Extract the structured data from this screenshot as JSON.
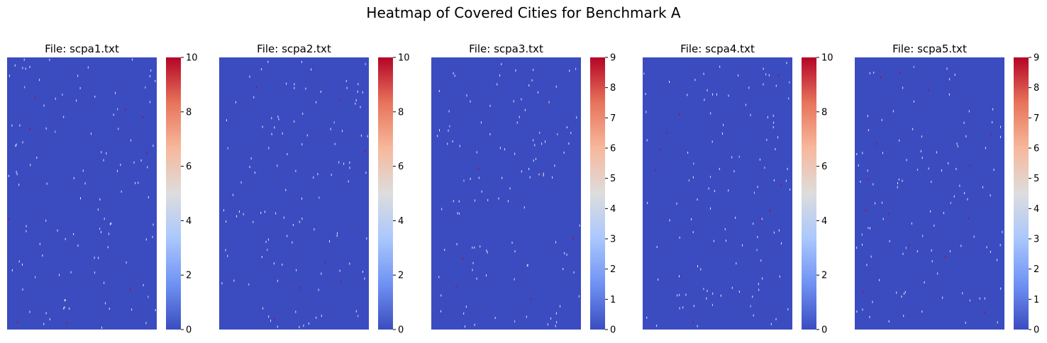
{
  "figure": {
    "title": "Heatmap of Covered Cities for Benchmark A"
  },
  "colors": {
    "background": "#3b4cc0",
    "colormap": "coolwarm",
    "colormap_stops": [
      "#3b4cc0",
      "#6f92f3",
      "#aac7fd",
      "#dddddd",
      "#f7b89c",
      "#e7745b",
      "#b40426"
    ]
  },
  "chart_data": [
    {
      "type": "heatmap",
      "title": "File: scpa1.txt",
      "xlabel": "",
      "ylabel": "",
      "colorbar": {
        "vmin": 0,
        "vmax": 10,
        "ticks": [
          "0",
          "2",
          "4",
          "6",
          "8",
          "10"
        ]
      },
      "background_value": 0,
      "nonzero_density": "sparse",
      "axes_visible": false
    },
    {
      "type": "heatmap",
      "title": "File: scpa2.txt",
      "xlabel": "",
      "ylabel": "",
      "colorbar": {
        "vmin": 0,
        "vmax": 10,
        "ticks": [
          "0",
          "2",
          "4",
          "6",
          "8",
          "10"
        ]
      },
      "background_value": 0,
      "nonzero_density": "sparse",
      "axes_visible": false
    },
    {
      "type": "heatmap",
      "title": "File: scpa3.txt",
      "xlabel": "",
      "ylabel": "",
      "colorbar": {
        "vmin": 0,
        "vmax": 9,
        "ticks": [
          "0",
          "1",
          "2",
          "3",
          "4",
          "5",
          "6",
          "7",
          "8",
          "9"
        ]
      },
      "background_value": 0,
      "nonzero_density": "sparse",
      "axes_visible": false
    },
    {
      "type": "heatmap",
      "title": "File: scpa4.txt",
      "xlabel": "",
      "ylabel": "",
      "colorbar": {
        "vmin": 0,
        "vmax": 10,
        "ticks": [
          "0",
          "2",
          "4",
          "6",
          "8",
          "10"
        ]
      },
      "background_value": 0,
      "nonzero_density": "sparse",
      "axes_visible": false
    },
    {
      "type": "heatmap",
      "title": "File: scpa5.txt",
      "xlabel": "",
      "ylabel": "",
      "colorbar": {
        "vmin": 0,
        "vmax": 9,
        "ticks": [
          "0",
          "1",
          "2",
          "3",
          "4",
          "5",
          "6",
          "7",
          "8",
          "9"
        ]
      },
      "background_value": 0,
      "nonzero_density": "sparse",
      "axes_visible": false
    }
  ]
}
